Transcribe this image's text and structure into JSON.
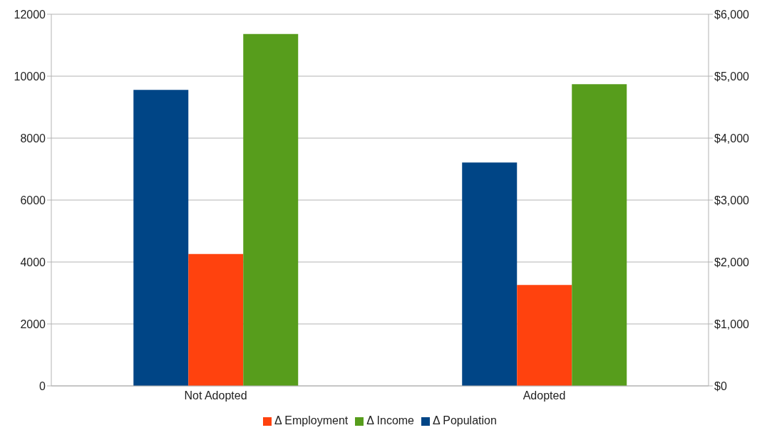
{
  "chart_data": {
    "type": "bar",
    "categories": [
      "Not Adopted",
      "Adopted"
    ],
    "series": [
      {
        "name": "Δ Population",
        "color": "#004586",
        "values": [
          9560,
          7210
        ]
      },
      {
        "name": "Δ Employment",
        "color": "#ff420e",
        "values": [
          4260,
          3260
        ]
      },
      {
        "name": "Δ Income",
        "color": "#579d1c",
        "values": [
          5680,
          4870
        ],
        "axis": "y2"
      }
    ],
    "ylim": [
      0,
      12000
    ],
    "yticks": [
      0,
      2000,
      4000,
      6000,
      8000,
      10000,
      12000
    ],
    "y2lim": [
      0,
      6000
    ],
    "y2ticks": [
      {
        "value": 0,
        "label": "$0"
      },
      {
        "value": 1000,
        "label": "$1,000"
      },
      {
        "value": 2000,
        "label": "$2,000"
      },
      {
        "value": 3000,
        "label": "$3,000"
      },
      {
        "value": 4000,
        "label": "$4,000"
      },
      {
        "value": 5000,
        "label": "$5,000"
      },
      {
        "value": 6000,
        "label": "$6,000"
      }
    ],
    "grid": "y",
    "legend": "bottom"
  }
}
